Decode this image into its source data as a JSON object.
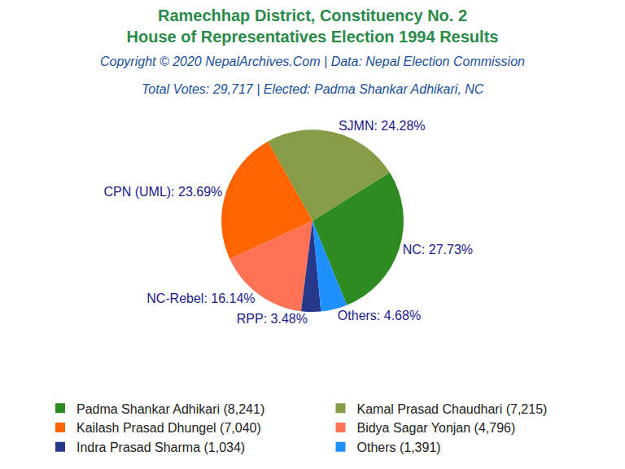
{
  "chart_data": {
    "type": "pie",
    "title": "Ramechhap District, Constituency No. 2\nHouse of Representatives Election 1994 Results",
    "subtitle": [
      "Copyright © 2020 NepalArchives.Com | Data: Nepal Election Commission",
      "Total Votes: 29,717 | Elected: Padma Shankar Adhikari, NC"
    ],
    "categories": [
      "Padma Shankar Adhikari (8,241)",
      "Kamal Prasad Chaudhari (7,215)",
      "Kailash Prasad Dhungel (7,040)",
      "Bidya Sagar Yonjan (4,796)",
      "Indra Prasad Sharma (1,034)",
      "Others (1,391)"
    ],
    "values": [
      27.73,
      24.28,
      23.69,
      16.14,
      3.48,
      4.68
    ],
    "value_labels": [
      "NC: 27.73%",
      "SJMN: 24.28%",
      "CPN (UML): 23.69%",
      "NC-Rebel: 16.14%",
      "RPP: 3.48%",
      "Others: 4.68%"
    ],
    "colors": [
      "#2e8b22",
      "#879c47",
      "#ff6400",
      "#ff7256",
      "#27378a",
      "#1e90ff"
    ],
    "data_labels": true,
    "legend": "bottom"
  }
}
